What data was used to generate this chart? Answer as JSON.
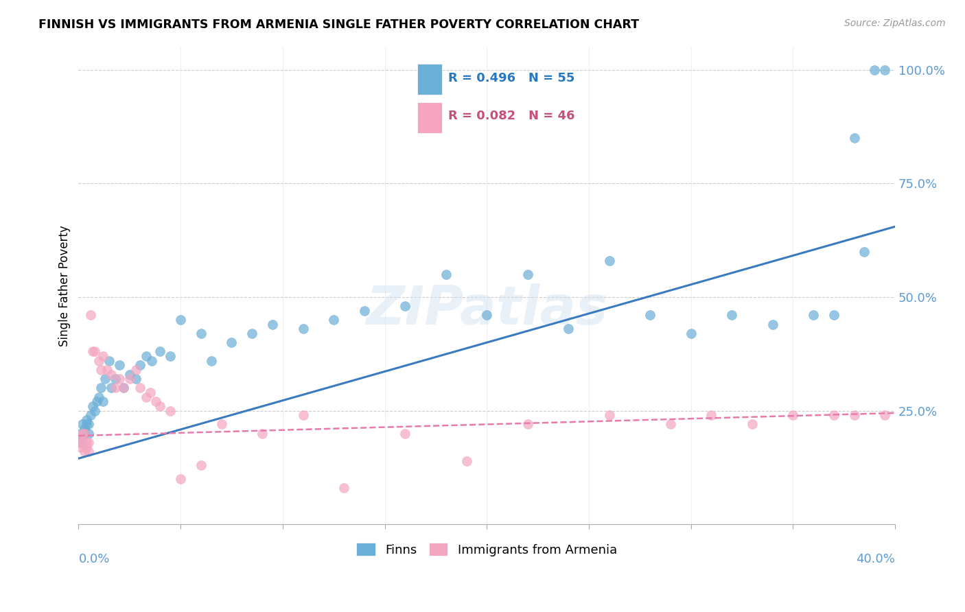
{
  "title": "FINNISH VS IMMIGRANTS FROM ARMENIA SINGLE FATHER POVERTY CORRELATION CHART",
  "source": "Source: ZipAtlas.com",
  "ylabel": "Single Father Poverty",
  "xlim": [
    0.0,
    0.4
  ],
  "ylim": [
    0.0,
    1.05
  ],
  "watermark": "ZIPatlas",
  "color_finns": "#6baed6",
  "color_armenia": "#f4a6c0",
  "color_line_finns": "#3a7abf",
  "color_line_armenia": "#e87aaa",
  "finns_x": [
    0.001,
    0.001,
    0.002,
    0.002,
    0.003,
    0.003,
    0.004,
    0.004,
    0.005,
    0.005,
    0.006,
    0.007,
    0.008,
    0.009,
    0.01,
    0.011,
    0.012,
    0.013,
    0.015,
    0.016,
    0.018,
    0.02,
    0.022,
    0.025,
    0.028,
    0.03,
    0.033,
    0.036,
    0.04,
    0.045,
    0.05,
    0.06,
    0.065,
    0.075,
    0.085,
    0.095,
    0.11,
    0.125,
    0.14,
    0.16,
    0.18,
    0.2,
    0.22,
    0.24,
    0.26,
    0.28,
    0.3,
    0.32,
    0.34,
    0.36,
    0.37,
    0.38,
    0.385,
    0.39,
    0.395
  ],
  "finns_y": [
    0.18,
    0.2,
    0.19,
    0.22,
    0.2,
    0.21,
    0.22,
    0.23,
    0.2,
    0.22,
    0.24,
    0.26,
    0.25,
    0.27,
    0.28,
    0.3,
    0.27,
    0.32,
    0.36,
    0.3,
    0.32,
    0.35,
    0.3,
    0.33,
    0.32,
    0.35,
    0.37,
    0.36,
    0.38,
    0.37,
    0.45,
    0.42,
    0.36,
    0.4,
    0.42,
    0.44,
    0.43,
    0.45,
    0.47,
    0.48,
    0.55,
    0.46,
    0.55,
    0.43,
    0.58,
    0.46,
    0.42,
    0.46,
    0.44,
    0.46,
    0.46,
    0.85,
    0.6,
    1.0,
    1.0
  ],
  "armenia_x": [
    0.001,
    0.001,
    0.002,
    0.002,
    0.003,
    0.003,
    0.004,
    0.004,
    0.005,
    0.005,
    0.006,
    0.007,
    0.008,
    0.01,
    0.011,
    0.012,
    0.014,
    0.016,
    0.018,
    0.02,
    0.022,
    0.025,
    0.028,
    0.03,
    0.033,
    0.035,
    0.038,
    0.04,
    0.045,
    0.05,
    0.06,
    0.07,
    0.09,
    0.11,
    0.13,
    0.16,
    0.19,
    0.22,
    0.26,
    0.29,
    0.31,
    0.33,
    0.35,
    0.37,
    0.38,
    0.395
  ],
  "armenia_y": [
    0.17,
    0.19,
    0.18,
    0.2,
    0.16,
    0.2,
    0.18,
    0.17,
    0.16,
    0.18,
    0.46,
    0.38,
    0.38,
    0.36,
    0.34,
    0.37,
    0.34,
    0.33,
    0.3,
    0.32,
    0.3,
    0.32,
    0.34,
    0.3,
    0.28,
    0.29,
    0.27,
    0.26,
    0.25,
    0.1,
    0.13,
    0.22,
    0.2,
    0.24,
    0.08,
    0.2,
    0.14,
    0.22,
    0.24,
    0.22,
    0.24,
    0.22,
    0.24,
    0.24,
    0.24,
    0.24
  ],
  "finns_line_x": [
    0.0,
    0.4
  ],
  "finns_line_y": [
    0.145,
    0.655
  ],
  "armenia_line_x": [
    0.0,
    0.4
  ],
  "armenia_line_y": [
    0.195,
    0.245
  ]
}
